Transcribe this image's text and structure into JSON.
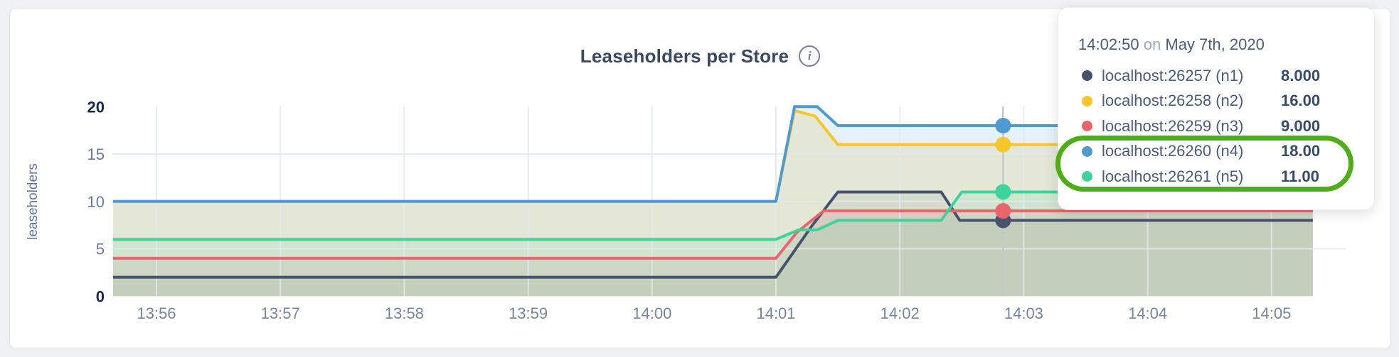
{
  "page": {
    "title": "Leaseholders per Store"
  },
  "tooltip": {
    "time": "14:02:50",
    "conjunction": "on",
    "date": "May 7th, 2020",
    "rows": [
      {
        "label": "localhost:26257 (n1)",
        "value": "8.000"
      },
      {
        "label": "localhost:26258 (n2)",
        "value": "16.00"
      },
      {
        "label": "localhost:26259 (n3)",
        "value": "9.000"
      },
      {
        "label": "localhost:26260 (n4)",
        "value": "18.00"
      },
      {
        "label": "localhost:26261 (n5)",
        "value": "11.00"
      }
    ],
    "annotation_color": "#4fae15"
  },
  "chart_data": {
    "type": "area",
    "title": "Leaseholders per Store",
    "ylabel": "leaseholders",
    "ylim": [
      0,
      20
    ],
    "yticks": [
      0,
      5,
      10,
      15,
      20
    ],
    "xticks": [
      "13:56",
      "13:57",
      "13:58",
      "13:59",
      "14:00",
      "14:01",
      "14:02",
      "14:03",
      "14:04",
      "14:05"
    ],
    "grid": true,
    "legend_position": "tooltip",
    "x_seconds_range": [
      -21,
      560
    ],
    "series": [
      {
        "name": "localhost:26257 (n1)",
        "color": "#47536d",
        "fill_opacity": 0.1,
        "points": [
          [
            -21,
            2
          ],
          [
            300,
            2
          ],
          [
            317,
            7.3
          ],
          [
            330,
            11
          ],
          [
            380,
            11
          ],
          [
            389,
            8
          ],
          [
            560,
            8
          ]
        ]
      },
      {
        "name": "localhost:26258 (n2)",
        "color": "#f7c62b",
        "fill_opacity": 0.2,
        "points": [
          [
            -21,
            10
          ],
          [
            300,
            10
          ],
          [
            309,
            19.6
          ],
          [
            319,
            19
          ],
          [
            330,
            16
          ],
          [
            560,
            16
          ]
        ]
      },
      {
        "name": "localhost:26259 (n3)",
        "color": "#eb656d",
        "fill_opacity": 0.12,
        "points": [
          [
            -21,
            4
          ],
          [
            300,
            4
          ],
          [
            310,
            6.7
          ],
          [
            323,
            9
          ],
          [
            560,
            9
          ]
        ]
      },
      {
        "name": "localhost:26260 (n4)",
        "color": "#4e9bd2",
        "fill_opacity": 0.14,
        "points": [
          [
            -21,
            10
          ],
          [
            300,
            10
          ],
          [
            309,
            20
          ],
          [
            320,
            20
          ],
          [
            330,
            18
          ],
          [
            560,
            18
          ]
        ]
      },
      {
        "name": "localhost:26261 (n5)",
        "color": "#3dd39d",
        "fill_opacity": 0.12,
        "points": [
          [
            -21,
            6
          ],
          [
            300,
            6
          ],
          [
            311,
            7
          ],
          [
            320,
            7
          ],
          [
            330,
            8
          ],
          [
            380,
            8
          ],
          [
            390,
            11
          ],
          [
            560,
            11
          ]
        ]
      }
    ],
    "hover": {
      "t_seconds": 410,
      "time_label": "14:02:50",
      "values": [
        8,
        16,
        9,
        18,
        11
      ]
    },
    "colors": {
      "grid": "#e3e8ef",
      "hover_line": "#c5c8cc",
      "y_tick_bold": "#152a4e",
      "y_tick": "#68799b",
      "x_tick": "#76869f",
      "axis_label": "#62739b"
    }
  }
}
